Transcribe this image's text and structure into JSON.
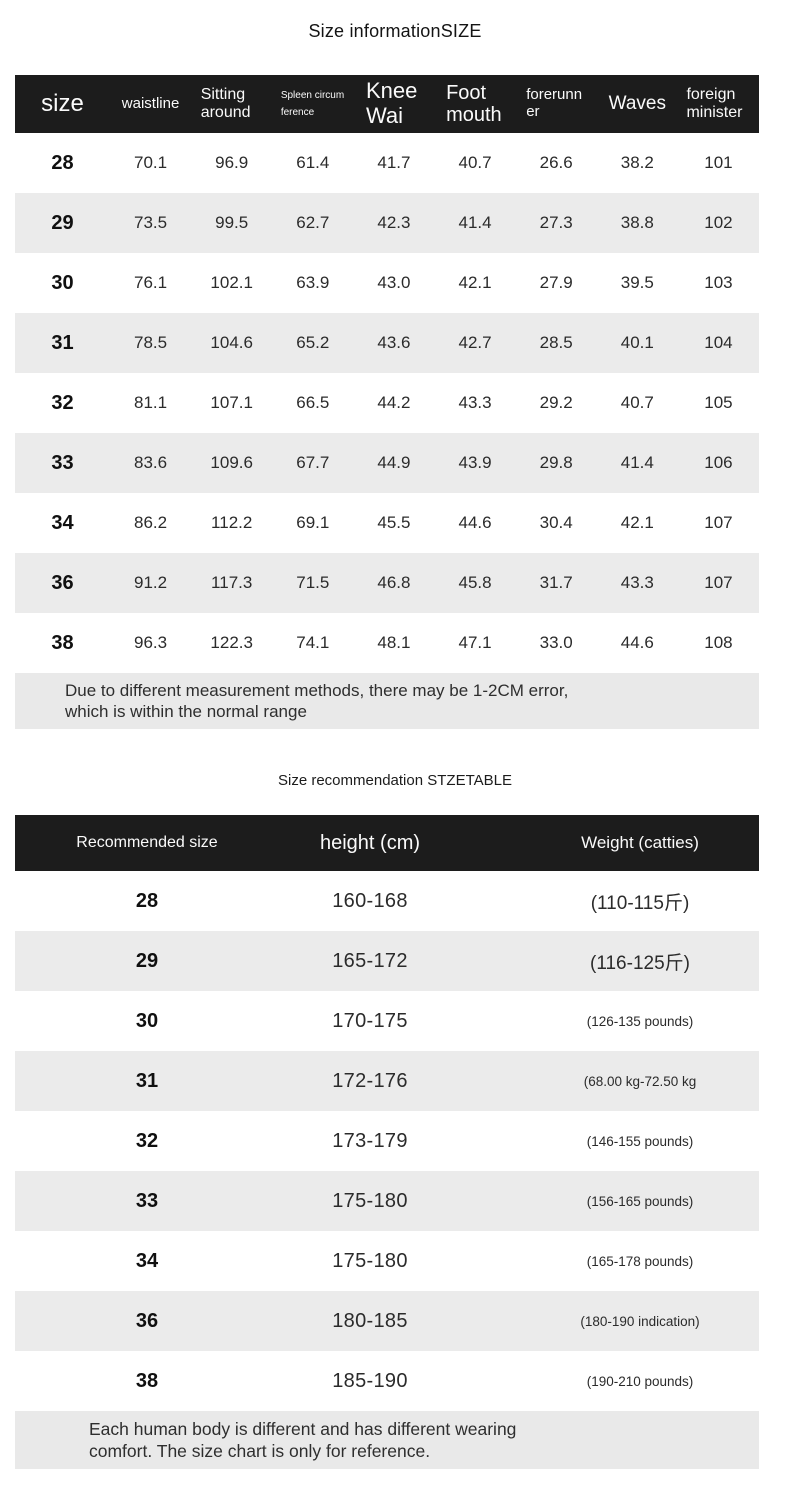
{
  "colors": {
    "header_bg": "#1c1c1c",
    "header_text": "#fafafa",
    "stripe_bg": "#ebebeb",
    "note_bg": "#e9e9e9",
    "page_bg": "#ffffff"
  },
  "size_info": {
    "title": "Size informationSIZE",
    "columns": [
      "size",
      "waistline",
      "Sitting around",
      "Spleen circumference",
      "Knee Wai",
      "Foot mouth",
      "forerunner",
      "Waves",
      "foreign minister"
    ],
    "rows": [
      [
        "28",
        "70.1",
        "96.9",
        "61.4",
        "41.7",
        "40.7",
        "26.6",
        "38.2",
        "101"
      ],
      [
        "29",
        "73.5",
        "99.5",
        "62.7",
        "42.3",
        "41.4",
        "27.3",
        "38.8",
        "102"
      ],
      [
        "30",
        "76.1",
        "102.1",
        "63.9",
        "43.0",
        "42.1",
        "27.9",
        "39.5",
        "103"
      ],
      [
        "31",
        "78.5",
        "104.6",
        "65.2",
        "43.6",
        "42.7",
        "28.5",
        "40.1",
        "104"
      ],
      [
        "32",
        "81.1",
        "107.1",
        "66.5",
        "44.2",
        "43.3",
        "29.2",
        "40.7",
        "105"
      ],
      [
        "33",
        "83.6",
        "109.6",
        "67.7",
        "44.9",
        "43.9",
        "29.8",
        "41.4",
        "106"
      ],
      [
        "34",
        "86.2",
        "112.2",
        "69.1",
        "45.5",
        "44.6",
        "30.4",
        "42.1",
        "107"
      ],
      [
        "36",
        "91.2",
        "117.3",
        "71.5",
        "46.8",
        "45.8",
        "31.7",
        "43.3",
        "107"
      ],
      [
        "38",
        "96.3",
        "122.3",
        "74.1",
        "48.1",
        "47.1",
        "33.0",
        "44.6",
        "108"
      ]
    ],
    "note_lines": [
      "Due to different measurement methods, there may be 1-2CM error,",
      "which is within the normal range"
    ]
  },
  "size_recommendation": {
    "title": "Size recommendation STZETABLE",
    "columns": [
      "Recommended size",
      "height (cm)",
      "Weight (catties)"
    ],
    "rows": [
      {
        "size": "28",
        "height": "160-168",
        "weight": "(110-115斤)",
        "weight_style": "large"
      },
      {
        "size": "29",
        "height": "165-172",
        "weight": "(116-125斤)",
        "weight_style": "large"
      },
      {
        "size": "30",
        "height": "170-175",
        "weight": "(126-135 pounds)",
        "weight_style": "small"
      },
      {
        "size": "31",
        "height": "172-176",
        "weight": "(68.00 kg-72.50 kg",
        "weight_style": "small"
      },
      {
        "size": "32",
        "height": "173-179",
        "weight": "(146-155 pounds)",
        "weight_style": "small"
      },
      {
        "size": "33",
        "height": "175-180",
        "weight": "(156-165 pounds)",
        "weight_style": "small"
      },
      {
        "size": "34",
        "height": "175-180",
        "weight": "(165-178 pounds)",
        "weight_style": "small"
      },
      {
        "size": "36",
        "height": "180-185",
        "weight": "(180-190 indication)",
        "weight_style": "small"
      },
      {
        "size": "38",
        "height": "185-190",
        "weight": "(190-210 pounds)",
        "weight_style": "small"
      }
    ],
    "note_lines": [
      "Each human body is different and has different wearing",
      "comfort. The size chart is only for reference."
    ]
  }
}
